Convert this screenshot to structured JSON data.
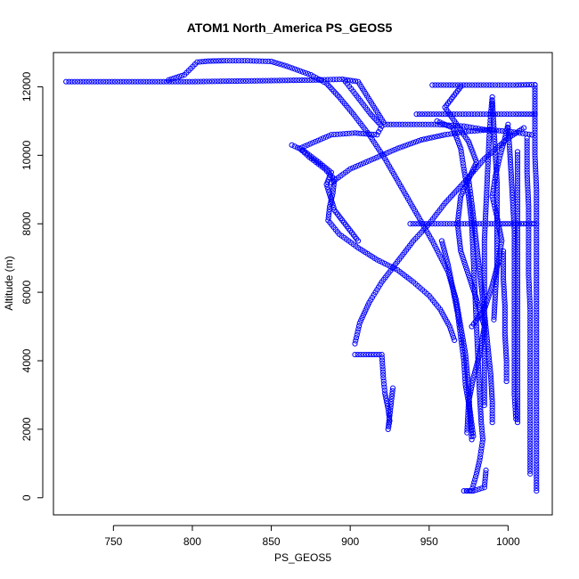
{
  "chart_data": {
    "type": "scatter",
    "title": "ATOM1 North_America PS_GEOS5",
    "xlabel": "PS_GEOS5",
    "ylabel": "Altitude (m)",
    "xlim": [
      712,
      1028
    ],
    "ylim": [
      -500,
      13000
    ],
    "xticks": [
      750,
      800,
      850,
      900,
      950,
      1000
    ],
    "yticks": [
      0,
      2000,
      4000,
      6000,
      8000,
      10000,
      12000
    ],
    "grid": false,
    "legend": "none",
    "marker": "open-circle",
    "color": "#0000ff",
    "series": [
      {
        "points": [
          [
            720,
            12150
          ],
          [
            760,
            12150
          ],
          [
            800,
            12150
          ],
          [
            850,
            12180
          ],
          [
            880,
            12200
          ],
          [
            895,
            12220
          ],
          [
            905,
            12150
          ],
          [
            922,
            10900
          ],
          [
            955,
            10900
          ],
          [
            972,
            10850
          ],
          [
            985,
            10750
          ],
          [
            1000,
            10700
          ],
          [
            1015,
            10600
          ]
        ]
      },
      {
        "points": [
          [
            785,
            12200
          ],
          [
            795,
            12350
          ],
          [
            803,
            12720
          ],
          [
            810,
            12750
          ],
          [
            820,
            12760
          ],
          [
            835,
            12760
          ],
          [
            850,
            12740
          ],
          [
            860,
            12600
          ],
          [
            875,
            12350
          ],
          [
            885,
            12100
          ],
          [
            893,
            11700
          ],
          [
            902,
            11200
          ],
          [
            912,
            10600
          ],
          [
            922,
            9900
          ],
          [
            932,
            9100
          ],
          [
            942,
            8300
          ],
          [
            952,
            7500
          ],
          [
            962,
            6600
          ],
          [
            967,
            5800
          ],
          [
            970,
            5000
          ],
          [
            973,
            4200
          ],
          [
            975,
            3200
          ],
          [
            976,
            2300
          ],
          [
            977,
            1700
          ]
        ]
      },
      {
        "points": [
          [
            897,
            12150
          ],
          [
            903,
            11800
          ],
          [
            913,
            11200
          ],
          [
            920,
            10850
          ],
          [
            917,
            10600
          ],
          [
            903,
            10650
          ],
          [
            888,
            10600
          ],
          [
            878,
            10400
          ],
          [
            868,
            10200
          ],
          [
            874,
            9950
          ],
          [
            884,
            9600
          ],
          [
            890,
            9300
          ],
          [
            889,
            8900
          ],
          [
            887,
            8500
          ],
          [
            886,
            8100
          ],
          [
            893,
            7700
          ],
          [
            905,
            7300
          ],
          [
            917,
            6950
          ],
          [
            930,
            6650
          ],
          [
            940,
            6300
          ],
          [
            950,
            5900
          ],
          [
            957,
            5500
          ],
          [
            963,
            5000
          ],
          [
            966,
            4600
          ]
        ]
      },
      {
        "points": [
          [
            863,
            10300
          ],
          [
            870,
            10150
          ],
          [
            880,
            9800
          ],
          [
            888,
            9500
          ],
          [
            885,
            9150
          ],
          [
            888,
            8700
          ],
          [
            890,
            8400
          ],
          [
            895,
            8100
          ],
          [
            900,
            7800
          ],
          [
            905,
            7500
          ]
        ]
      },
      {
        "points": [
          [
            903,
            4500
          ],
          [
            906,
            5100
          ],
          [
            912,
            5700
          ],
          [
            920,
            6300
          ],
          [
            930,
            6900
          ],
          [
            940,
            7500
          ],
          [
            950,
            8000
          ],
          [
            960,
            8600
          ],
          [
            972,
            9200
          ],
          [
            985,
            9900
          ],
          [
            1000,
            10500
          ],
          [
            1010,
            10800
          ]
        ]
      },
      {
        "points": [
          [
            888,
            9200
          ],
          [
            900,
            9600
          ],
          [
            915,
            9900
          ],
          [
            930,
            10200
          ],
          [
            945,
            10450
          ],
          [
            960,
            10600
          ],
          [
            975,
            10700
          ],
          [
            990,
            10750
          ]
        ]
      },
      {
        "points": [
          [
            903,
            4180
          ],
          [
            910,
            4180
          ],
          [
            915,
            4180
          ],
          [
            920,
            4180
          ],
          [
            921,
            3500
          ],
          [
            922,
            3050
          ],
          [
            924,
            2600
          ],
          [
            925,
            2250
          ],
          [
            924,
            2000
          ],
          [
            926,
            2800
          ],
          [
            927,
            3200
          ]
        ]
      },
      {
        "points": [
          [
            938,
            8000
          ],
          [
            950,
            8000
          ],
          [
            965,
            8000
          ],
          [
            980,
            8000
          ],
          [
            995,
            8000
          ],
          [
            1005,
            8000
          ],
          [
            1015,
            8000
          ],
          [
            1018,
            8000
          ]
        ]
      },
      {
        "points": [
          [
            952,
            12050
          ],
          [
            970,
            12050
          ],
          [
            990,
            12050
          ],
          [
            1005,
            12050
          ],
          [
            1015,
            12060
          ],
          [
            1017,
            12060
          ]
        ]
      },
      {
        "points": [
          [
            942,
            11200
          ],
          [
            960,
            11200
          ],
          [
            975,
            11200
          ],
          [
            990,
            11200
          ],
          [
            1005,
            11200
          ],
          [
            1017,
            11200
          ]
        ]
      },
      {
        "points": [
          [
            955,
            11000
          ],
          [
            965,
            10800
          ],
          [
            970,
            10200
          ],
          [
            972,
            9600
          ],
          [
            975,
            8800
          ],
          [
            977,
            8000
          ],
          [
            978,
            7000
          ],
          [
            979,
            6000
          ],
          [
            980,
            5000
          ],
          [
            981,
            4000
          ],
          [
            982,
            3000
          ],
          [
            983,
            2200
          ],
          [
            984,
            1700
          ],
          [
            982,
            1100
          ],
          [
            980,
            700
          ],
          [
            977,
            200
          ],
          [
            972,
            200
          ],
          [
            978,
            200
          ],
          [
            985,
            300
          ],
          [
            986,
            800
          ]
        ]
      },
      {
        "points": [
          [
            970,
            12000
          ],
          [
            965,
            11700
          ],
          [
            960,
            11400
          ],
          [
            966,
            11000
          ],
          [
            975,
            10400
          ],
          [
            980,
            9800
          ],
          [
            975,
            9300
          ],
          [
            970,
            8800
          ],
          [
            968,
            8000
          ],
          [
            970,
            7200
          ],
          [
            975,
            6500
          ],
          [
            980,
            5800
          ],
          [
            985,
            5000
          ],
          [
            982,
            4200
          ],
          [
            978,
            3500
          ],
          [
            975,
            2800
          ],
          [
            974,
            1900
          ]
        ]
      },
      {
        "points": [
          [
            958,
            7500
          ],
          [
            962,
            6800
          ],
          [
            965,
            6100
          ],
          [
            968,
            5400
          ],
          [
            970,
            4700
          ],
          [
            972,
            4000
          ],
          [
            973,
            3300
          ],
          [
            976,
            2500
          ],
          [
            978,
            1800
          ]
        ]
      },
      {
        "points": [
          [
            975,
            9300
          ],
          [
            977,
            8600
          ],
          [
            979,
            7800
          ],
          [
            981,
            7000
          ],
          [
            983,
            6200
          ],
          [
            985,
            5400
          ],
          [
            987,
            4500
          ],
          [
            989,
            3600
          ],
          [
            990,
            2800
          ],
          [
            990,
            2200
          ]
        ]
      },
      {
        "points": [
          [
            977,
            5000
          ],
          [
            985,
            5500
          ],
          [
            990,
            6200
          ],
          [
            994,
            6900
          ],
          [
            996,
            7500
          ],
          [
            993,
            8200
          ],
          [
            990,
            8800
          ],
          [
            992,
            9400
          ],
          [
            995,
            10000
          ],
          [
            998,
            10500
          ],
          [
            1000,
            10900
          ]
        ]
      },
      {
        "points": [
          [
            985,
            2700
          ],
          [
            985,
            3500
          ],
          [
            985,
            4500
          ],
          [
            985,
            5500
          ],
          [
            985,
            6500
          ],
          [
            985,
            7500
          ],
          [
            986,
            8500
          ],
          [
            987,
            9500
          ],
          [
            988,
            10500
          ],
          [
            989,
            11200
          ],
          [
            990,
            11700
          ]
        ]
      },
      {
        "points": [
          [
            990,
            11600
          ],
          [
            991,
            10800
          ],
          [
            992,
            10000
          ],
          [
            993,
            9200
          ],
          [
            993,
            8400
          ],
          [
            993,
            7600
          ],
          [
            993,
            6800
          ],
          [
            992,
            6000
          ],
          [
            991,
            5200
          ]
        ]
      },
      {
        "points": [
          [
            1000,
            10800
          ],
          [
            1001,
            10200
          ],
          [
            1002,
            9400
          ],
          [
            1003,
            8600
          ],
          [
            1004,
            7800
          ],
          [
            1004,
            7000
          ],
          [
            1004,
            6000
          ],
          [
            1004,
            5000
          ],
          [
            1004,
            4000
          ],
          [
            1004,
            3000
          ],
          [
            1005,
            2300
          ]
        ]
      },
      {
        "points": [
          [
            1006,
            10100
          ],
          [
            1006,
            9000
          ],
          [
            1006,
            8000
          ],
          [
            1006,
            7000
          ],
          [
            1006,
            6000
          ],
          [
            1006,
            5000
          ],
          [
            1006,
            4000
          ],
          [
            1006,
            3000
          ],
          [
            1006,
            2200
          ]
        ]
      },
      {
        "points": [
          [
            1012,
            10500
          ],
          [
            1012,
            9500
          ],
          [
            1013,
            8500
          ],
          [
            1013,
            7500
          ],
          [
            1013,
            6500
          ],
          [
            1014,
            5500
          ],
          [
            1014,
            4500
          ],
          [
            1014,
            3500
          ],
          [
            1014,
            2500
          ],
          [
            1014,
            1500
          ],
          [
            1014,
            700
          ]
        ]
      },
      {
        "points": [
          [
            1017,
            12050
          ],
          [
            1017,
            11000
          ],
          [
            1017,
            10000
          ],
          [
            1018,
            9000
          ],
          [
            1018,
            8000
          ],
          [
            1018,
            7000
          ],
          [
            1018,
            6000
          ],
          [
            1018,
            5000
          ],
          [
            1018,
            4000
          ],
          [
            1018,
            3000
          ],
          [
            1018,
            2000
          ],
          [
            1018,
            1000
          ],
          [
            1018,
            200
          ]
        ]
      },
      {
        "points": [
          [
            997,
            7200
          ],
          [
            997,
            6400
          ],
          [
            998,
            5600
          ],
          [
            998,
            4800
          ],
          [
            999,
            4000
          ],
          [
            999,
            3400
          ]
        ]
      }
    ]
  }
}
